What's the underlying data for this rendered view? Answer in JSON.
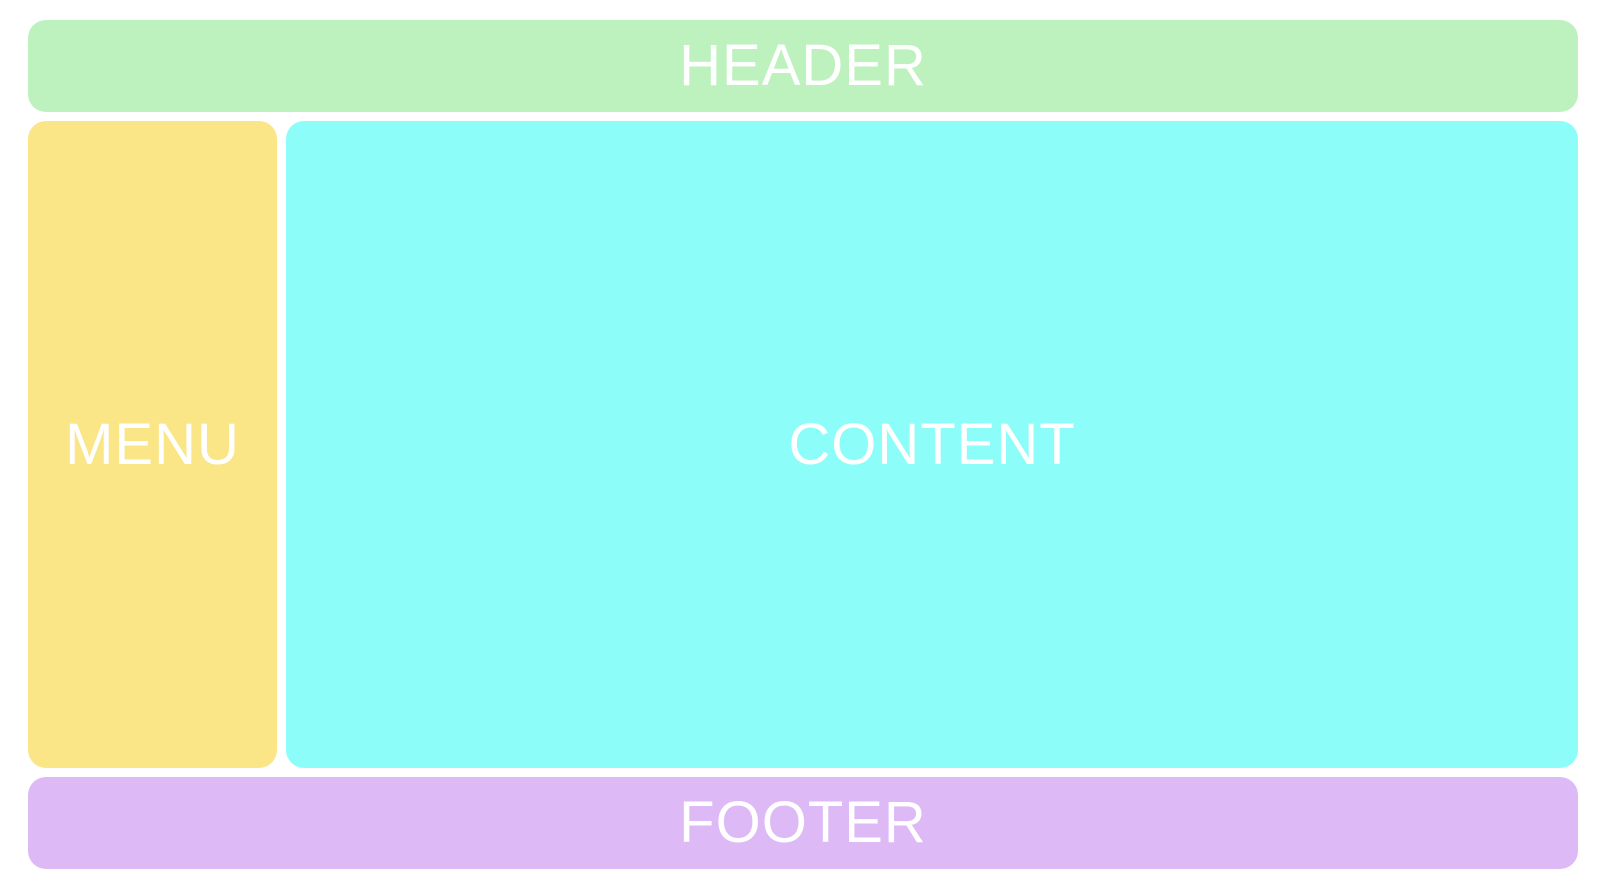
{
  "colors": {
    "header": "#bdf1be",
    "menu": "#fae687",
    "content": "#8dfdf9",
    "footer": "#ddb9f6",
    "text": "#ffffff",
    "background": "#ffffff"
  },
  "regions": {
    "header": {
      "label": "HEADER"
    },
    "menu": {
      "label": "MENU"
    },
    "content": {
      "label": "CONTENT"
    },
    "footer": {
      "label": "FOOTER"
    }
  }
}
